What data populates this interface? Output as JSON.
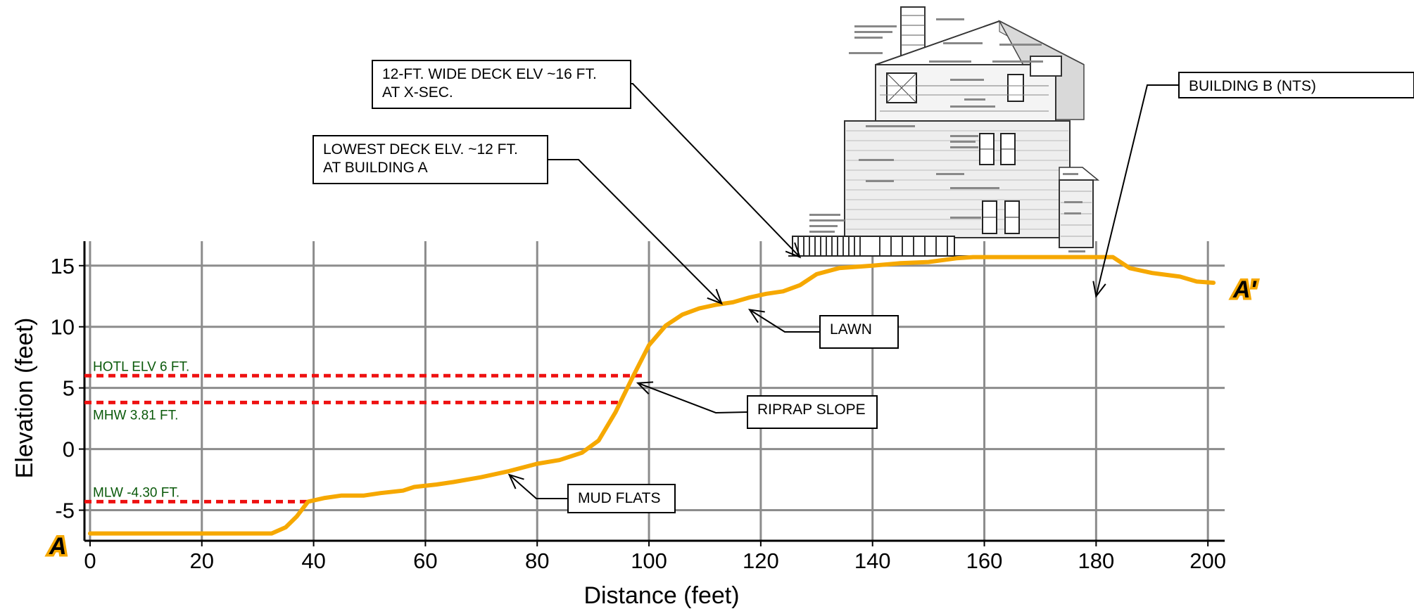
{
  "chart_data": {
    "type": "line",
    "title": "",
    "xlabel": "Distance (feet)",
    "ylabel": "Elevation (feet)",
    "xlim": [
      -1,
      203
    ],
    "ylim": [
      -7.5,
      17
    ],
    "xticks": [
      0,
      20,
      40,
      60,
      80,
      100,
      120,
      140,
      160,
      180,
      200
    ],
    "yticks": [
      -5,
      0,
      5,
      10,
      15
    ],
    "grid": true,
    "series": [
      {
        "color": "#f6a800",
        "x": [
          0,
          10,
          20,
          30,
          32.5,
          35,
          37,
          39,
          42,
          45,
          49,
          52,
          56,
          58,
          62,
          65,
          70,
          75,
          80,
          84,
          88,
          91,
          94,
          97,
          100,
          103,
          106,
          109,
          112,
          115,
          118,
          121,
          124,
          127,
          130,
          134,
          140,
          145,
          150,
          155,
          158,
          183,
          186,
          190,
          195,
          198,
          201
        ],
        "y": [
          -6.9,
          -6.9,
          -6.9,
          -6.9,
          -6.9,
          -6.4,
          -5.5,
          -4.3,
          -4.0,
          -3.8,
          -3.8,
          -3.6,
          -3.4,
          -3.1,
          -2.9,
          -2.7,
          -2.3,
          -1.8,
          -1.2,
          -0.9,
          -0.3,
          0.7,
          3.0,
          5.8,
          8.5,
          10.1,
          11.0,
          11.5,
          11.8,
          12.0,
          12.4,
          12.7,
          12.9,
          13.4,
          14.3,
          14.8,
          15.0,
          15.2,
          15.3,
          15.6,
          15.7,
          15.7,
          14.8,
          14.4,
          14.1,
          13.7,
          13.6
        ]
      }
    ],
    "reference_lines": [
      {
        "label": "HOTL ELV 6 FT.",
        "y": 6,
        "x_end": 99,
        "label_position": "above",
        "color": "#ee1111"
      },
      {
        "label": "MHW 3.81 FT.",
        "y": 3.81,
        "x_end": 95,
        "label_position": "below",
        "color": "#ee1111"
      },
      {
        "label": "MLW -4.30 FT.",
        "y": -4.3,
        "x_end": 39,
        "label_position": "above",
        "color": "#ee1111"
      }
    ],
    "annotations": [
      {
        "lines": [
          "12-FT. WIDE DECK ELV ~16 FT.",
          "AT X-SEC."
        ],
        "target": [
          127,
          15.7
        ]
      },
      {
        "lines": [
          "LOWEST DECK ELV. ~12 FT.",
          "AT BUILDING A"
        ],
        "target": [
          113,
          11.9
        ]
      },
      {
        "lines": [
          "BUILDING B (NTS)"
        ],
        "target": [
          180,
          12.5
        ]
      },
      {
        "lines": [
          "LAWN"
        ],
        "target": [
          118,
          11.4
        ]
      },
      {
        "lines": [
          "RIPRAP SLOPE"
        ],
        "target": [
          98,
          5.4
        ]
      },
      {
        "lines": [
          "MUD FLATS"
        ],
        "target": [
          75,
          -2.1
        ]
      }
    ],
    "endpoints": {
      "start": "A",
      "end": "A'"
    }
  }
}
